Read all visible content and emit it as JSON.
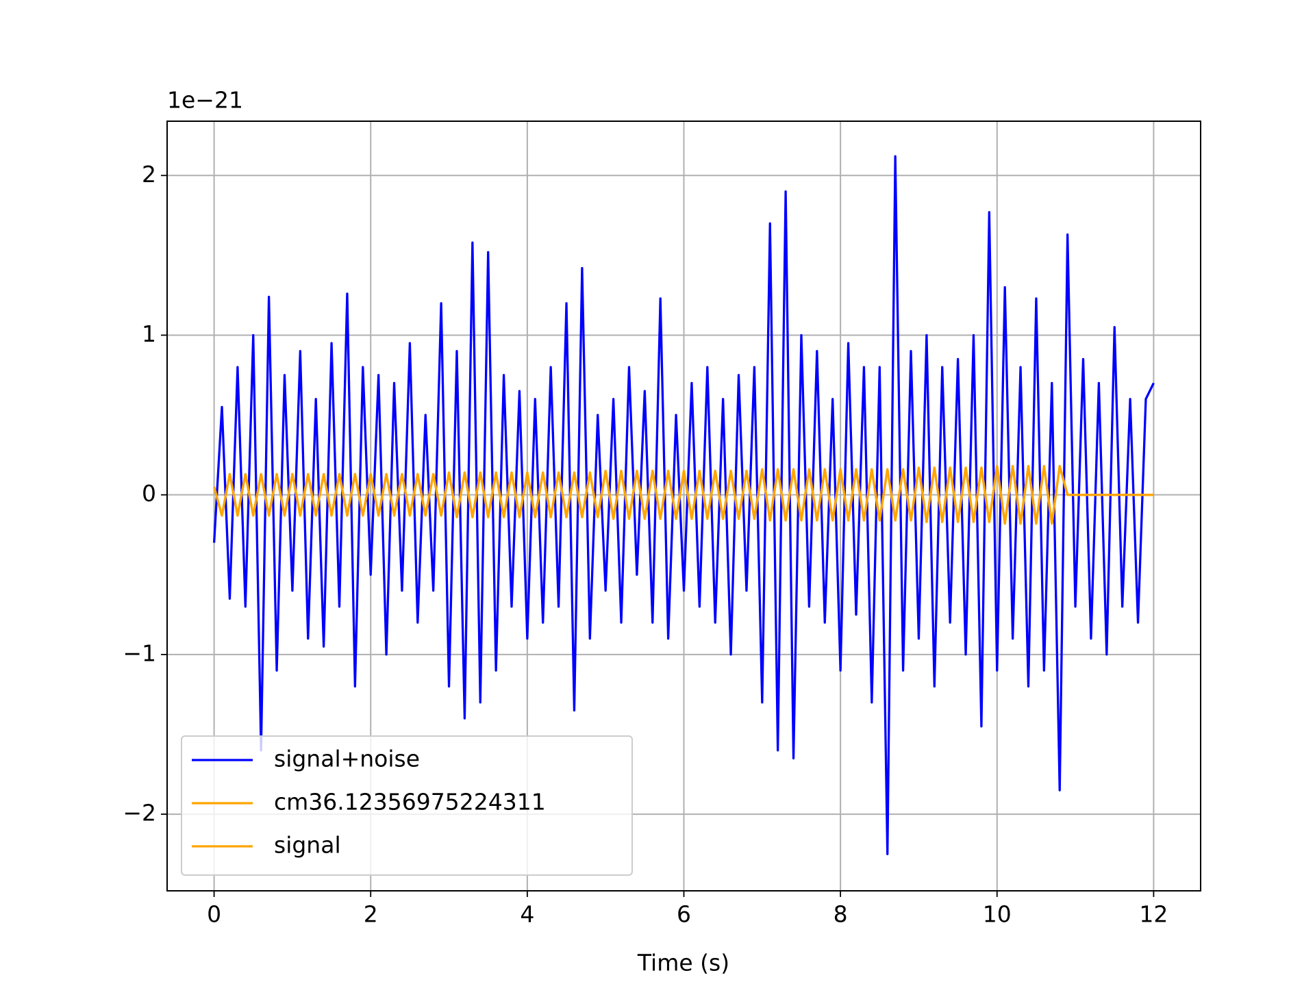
{
  "chart_data": {
    "type": "line",
    "xlabel": "Time (s)",
    "y_offset_label": "1e−21",
    "xlim": [
      -0.6,
      12.6
    ],
    "ylim": [
      -2.48,
      2.34
    ],
    "xticks": [
      0,
      2,
      4,
      6,
      8,
      10,
      12
    ],
    "yticks": [
      {
        "value": -2,
        "label": "−2"
      },
      {
        "value": -1,
        "label": "−1"
      },
      0,
      1,
      2
    ],
    "grid": true,
    "legend": "lower left",
    "series": [
      {
        "name": "signal+noise",
        "color": "#0000ff",
        "x": [
          0,
          0.1,
          0.2,
          0.3,
          0.4,
          0.5,
          0.6,
          0.7,
          0.8,
          0.9,
          1,
          1.1,
          1.2,
          1.3,
          1.4,
          1.5,
          1.6,
          1.7,
          1.8,
          1.9,
          2,
          2.1,
          2.2,
          2.3,
          2.4,
          2.5,
          2.6,
          2.7,
          2.8,
          2.9,
          3,
          3.1,
          3.2,
          3.3,
          3.4,
          3.5,
          3.6,
          3.7,
          3.8,
          3.9,
          4,
          4.1,
          4.2,
          4.3,
          4.4,
          4.5,
          4.6,
          4.7,
          4.8,
          4.9,
          5,
          5.1,
          5.2,
          5.3,
          5.4,
          5.5,
          5.6,
          5.7,
          5.8,
          5.9,
          6,
          6.1,
          6.2,
          6.3,
          6.4,
          6.5,
          6.6,
          6.7,
          6.8,
          6.9,
          7,
          7.1,
          7.2,
          7.3,
          7.4,
          7.5,
          7.6,
          7.7,
          7.8,
          7.9,
          8,
          8.1,
          8.2,
          8.3,
          8.4,
          8.5,
          8.6,
          8.7,
          8.8,
          8.9,
          9,
          9.1,
          9.2,
          9.3,
          9.4,
          9.5,
          9.6,
          9.7,
          9.8,
          9.9,
          10,
          10.1,
          10.2,
          10.3,
          10.4,
          10.5,
          10.6,
          10.7,
          10.8,
          10.9,
          11,
          11.1,
          11.2,
          11.3,
          11.4,
          11.5,
          11.6,
          11.7,
          11.8,
          11.9,
          12
        ],
        "values": [
          -0.3,
          0.55,
          -0.65,
          0.8,
          -0.7,
          1.0,
          -1.6,
          1.24,
          -1.1,
          0.75,
          -0.6,
          0.9,
          -0.9,
          0.6,
          -0.95,
          0.95,
          -0.7,
          1.26,
          -1.2,
          0.8,
          -0.5,
          0.75,
          -1.0,
          0.7,
          -0.6,
          0.95,
          -0.8,
          0.5,
          -0.6,
          1.2,
          -1.2,
          0.9,
          -1.4,
          1.58,
          -1.3,
          1.52,
          -1.1,
          0.75,
          -0.7,
          0.65,
          -0.9,
          0.6,
          -0.8,
          0.8,
          -0.7,
          1.2,
          -1.35,
          1.42,
          -0.9,
          0.5,
          -0.6,
          0.6,
          -0.8,
          0.8,
          -0.5,
          0.65,
          -0.8,
          1.23,
          -0.9,
          0.5,
          -0.6,
          0.7,
          -0.7,
          0.8,
          -0.8,
          0.6,
          -1.0,
          0.75,
          -0.6,
          0.8,
          -1.3,
          1.7,
          -1.6,
          1.9,
          -1.65,
          1.0,
          -0.7,
          0.9,
          -0.8,
          0.6,
          -1.1,
          0.95,
          -0.75,
          0.8,
          -1.3,
          0.8,
          -2.25,
          2.12,
          -1.1,
          0.9,
          -0.9,
          1.0,
          -1.2,
          0.8,
          -0.8,
          0.85,
          -1.0,
          1.0,
          -1.45,
          1.77,
          -1.1,
          1.3,
          -0.9,
          0.8,
          -1.2,
          1.23,
          -1.1,
          0.7,
          -1.85,
          1.63,
          -0.7,
          0.85,
          -0.9,
          0.7,
          -1.0,
          1.05,
          -0.7,
          0.6,
          -0.8,
          0.6,
          0.7
        ]
      },
      {
        "name": "cm36.12356975224311",
        "color": "#ffa500",
        "x": [
          0,
          0.1,
          0.2,
          0.3,
          0.4,
          0.5,
          0.6,
          0.7,
          0.8,
          0.9,
          1,
          1.1,
          1.2,
          1.3,
          1.4,
          1.5,
          1.6,
          1.7,
          1.8,
          1.9,
          2,
          2.1,
          2.2,
          2.3,
          2.4,
          2.5,
          2.6,
          2.7,
          2.8,
          2.9,
          3,
          3.1,
          3.2,
          3.3,
          3.4,
          3.5,
          3.6,
          3.7,
          3.8,
          3.9,
          4,
          4.1,
          4.2,
          4.3,
          4.4,
          4.5,
          4.6,
          4.7,
          4.8,
          4.9,
          5,
          5.1,
          5.2,
          5.3,
          5.4,
          5.5,
          5.6,
          5.7,
          5.8,
          5.9,
          6,
          6.1,
          6.2,
          6.3,
          6.4,
          6.5,
          6.6,
          6.7,
          6.8,
          6.9,
          7,
          7.1,
          7.2,
          7.3,
          7.4,
          7.5,
          7.6,
          7.7,
          7.8,
          7.9,
          8,
          8.1,
          8.2,
          8.3,
          8.4,
          8.5,
          8.6,
          8.7,
          8.8,
          8.9,
          9,
          9.1,
          9.2,
          9.3,
          9.4,
          9.5,
          9.6,
          9.7,
          9.8,
          9.9,
          10,
          10.1,
          10.2,
          10.3,
          10.4,
          10.5,
          10.6,
          10.7,
          10.8,
          10.9,
          12
        ],
        "values": [
          0.05,
          -0.13,
          0.13,
          -0.13,
          0.13,
          -0.13,
          0.13,
          -0.13,
          0.13,
          -0.13,
          0.13,
          -0.13,
          0.13,
          -0.13,
          0.13,
          -0.13,
          0.13,
          -0.13,
          0.13,
          -0.13,
          0.13,
          -0.13,
          0.13,
          -0.13,
          0.13,
          -0.13,
          0.13,
          -0.13,
          0.13,
          -0.13,
          0.14,
          -0.14,
          0.14,
          -0.14,
          0.14,
          -0.14,
          0.14,
          -0.14,
          0.14,
          -0.14,
          0.14,
          -0.14,
          0.14,
          -0.14,
          0.14,
          -0.14,
          0.14,
          -0.14,
          0.14,
          -0.14,
          0.15,
          -0.15,
          0.15,
          -0.15,
          0.15,
          -0.15,
          0.15,
          -0.15,
          0.15,
          -0.15,
          0.15,
          -0.15,
          0.15,
          -0.15,
          0.15,
          -0.15,
          0.15,
          -0.15,
          0.15,
          -0.15,
          0.16,
          -0.16,
          0.16,
          -0.16,
          0.16,
          -0.16,
          0.16,
          -0.16,
          0.16,
          -0.16,
          0.16,
          -0.16,
          0.16,
          -0.16,
          0.16,
          -0.16,
          0.16,
          -0.16,
          0.16,
          -0.16,
          0.17,
          -0.17,
          0.17,
          -0.17,
          0.17,
          -0.17,
          0.17,
          -0.17,
          0.17,
          -0.17,
          0.18,
          -0.18,
          0.18,
          -0.18,
          0.18,
          -0.18,
          0.18,
          -0.18,
          0.18,
          0,
          0
        ]
      },
      {
        "name": "signal",
        "color": "#ffa500",
        "x": [
          0,
          0.1,
          0.2,
          0.3,
          0.4,
          0.5,
          0.6,
          0.7,
          0.8,
          0.9,
          1,
          1.1,
          1.2,
          1.3,
          1.4,
          1.5,
          1.6,
          1.7,
          1.8,
          1.9,
          2,
          2.1,
          2.2,
          2.3,
          2.4,
          2.5,
          2.6,
          2.7,
          2.8,
          2.9,
          3,
          3.1,
          3.2,
          3.3,
          3.4,
          3.5,
          3.6,
          3.7,
          3.8,
          3.9,
          4,
          4.1,
          4.2,
          4.3,
          4.4,
          4.5,
          4.6,
          4.7,
          4.8,
          4.9,
          5,
          5.1,
          5.2,
          5.3,
          5.4,
          5.5,
          5.6,
          5.7,
          5.8,
          5.9,
          6,
          6.1,
          6.2,
          6.3,
          6.4,
          6.5,
          6.6,
          6.7,
          6.8,
          6.9,
          7,
          7.1,
          7.2,
          7.3,
          7.4,
          7.5,
          7.6,
          7.7,
          7.8,
          7.9,
          8,
          8.1,
          8.2,
          8.3,
          8.4,
          8.5,
          8.6,
          8.7,
          8.8,
          8.9,
          9,
          9.1,
          9.2,
          9.3,
          9.4,
          9.5,
          9.6,
          9.7,
          9.8,
          9.9,
          10,
          10.1,
          10.2,
          10.3,
          10.4,
          10.5,
          10.6,
          10.7,
          10.8,
          10.9,
          12
        ],
        "values": [
          0.05,
          -0.13,
          0.13,
          -0.13,
          0.13,
          -0.13,
          0.13,
          -0.13,
          0.13,
          -0.13,
          0.13,
          -0.13,
          0.13,
          -0.13,
          0.13,
          -0.13,
          0.13,
          -0.13,
          0.13,
          -0.13,
          0.13,
          -0.13,
          0.13,
          -0.13,
          0.13,
          -0.13,
          0.13,
          -0.13,
          0.13,
          -0.13,
          0.14,
          -0.14,
          0.14,
          -0.14,
          0.14,
          -0.14,
          0.14,
          -0.14,
          0.14,
          -0.14,
          0.14,
          -0.14,
          0.14,
          -0.14,
          0.14,
          -0.14,
          0.14,
          -0.14,
          0.14,
          -0.14,
          0.15,
          -0.15,
          0.15,
          -0.15,
          0.15,
          -0.15,
          0.15,
          -0.15,
          0.15,
          -0.15,
          0.15,
          -0.15,
          0.15,
          -0.15,
          0.15,
          -0.15,
          0.15,
          -0.15,
          0.15,
          -0.15,
          0.16,
          -0.16,
          0.16,
          -0.16,
          0.16,
          -0.16,
          0.16,
          -0.16,
          0.16,
          -0.16,
          0.16,
          -0.16,
          0.16,
          -0.16,
          0.16,
          -0.16,
          0.16,
          -0.16,
          0.16,
          -0.16,
          0.17,
          -0.17,
          0.17,
          -0.17,
          0.17,
          -0.17,
          0.17,
          -0.17,
          0.17,
          -0.17,
          0.18,
          -0.18,
          0.18,
          -0.18,
          0.18,
          -0.18,
          0.18,
          -0.18,
          0.18,
          0,
          0
        ]
      }
    ]
  }
}
